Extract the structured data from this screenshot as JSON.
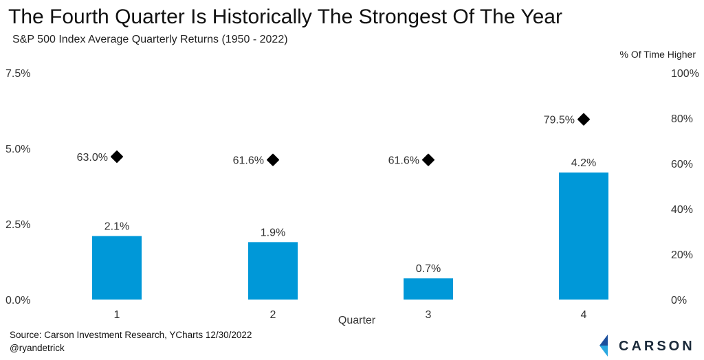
{
  "header": {
    "title": "The Fourth Quarter Is Historically The Strongest Of The Year",
    "subtitle": "S&P 500 Index Average Quarterly Returns (1950 - 2022)"
  },
  "footer": {
    "source": "Source: Carson Investment Research, YCharts 12/30/2022",
    "handle": "@ryandetrick",
    "logo_text": "CARSON"
  },
  "colors": {
    "bar": "#0098d8",
    "marker": "#000000",
    "logo_dark": "#1b4f9c",
    "logo_light": "#2aa8e0"
  },
  "chart_data": {
    "type": "bar",
    "categories": [
      "1",
      "2",
      "3",
      "4"
    ],
    "xlabel": "Quarter",
    "series": [
      {
        "values": [
          2.1,
          1.9,
          0.7,
          4.2
        ],
        "value_labels": [
          "2.1%",
          "1.9%",
          "0.7%",
          "4.2%"
        ],
        "axis": "left",
        "mark": "bar"
      },
      {
        "name": "% Of Time Higher",
        "values": [
          63.0,
          61.6,
          61.6,
          79.5
        ],
        "value_labels": [
          "63.0%",
          "61.6%",
          "61.6%",
          "79.5%"
        ],
        "axis": "right",
        "mark": "diamond"
      }
    ],
    "y_left": {
      "ylim": [
        0,
        7.5
      ],
      "ticks": [
        0,
        2.5,
        5.0,
        7.5
      ],
      "tick_labels": [
        "0.0%",
        "2.5%",
        "5.0%",
        "7.5%"
      ]
    },
    "y_right": {
      "label": "% Of Time Higher",
      "ylim": [
        0,
        100
      ],
      "ticks": [
        0,
        20,
        40,
        60,
        80,
        100
      ],
      "tick_labels": [
        "0%",
        "20%",
        "40%",
        "60%",
        "80%",
        "100%"
      ]
    },
    "grid": false
  }
}
